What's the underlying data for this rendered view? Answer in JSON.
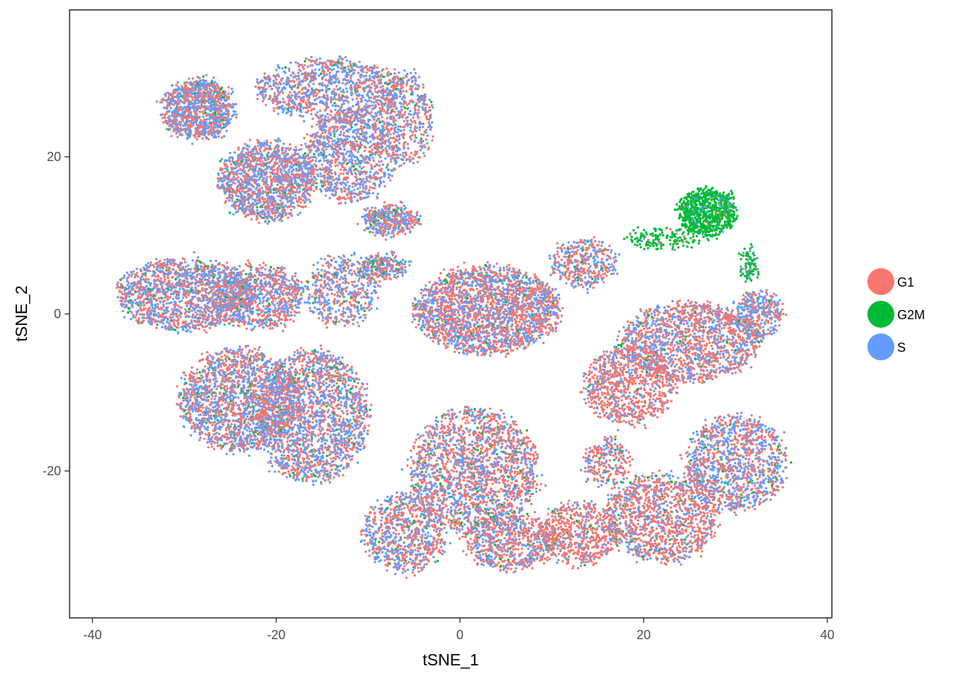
{
  "chart_data": {
    "type": "scatter",
    "title": "",
    "xlabel": "tSNE_1",
    "ylabel": "tSNE_2",
    "xlim": [
      -42.5,
      40.5
    ],
    "ylim": [
      -38.7,
      38.7
    ],
    "x_ticks": [
      -40,
      -20,
      0,
      20,
      40
    ],
    "y_ticks": [
      -20,
      0,
      20
    ],
    "x_tick_labels": [
      "-40",
      "-20",
      "0",
      "20",
      "40"
    ],
    "y_tick_labels": [
      "-20",
      "0",
      "20"
    ],
    "grid": false,
    "legend_position": "right",
    "series": [
      {
        "name": "G1",
        "color": "#F8766D"
      },
      {
        "name": "G2M",
        "color": "#00BA38"
      },
      {
        "name": "S",
        "color": "#619CFF"
      }
    ],
    "clusters": [
      {
        "cx": -28.5,
        "cy": 26.0,
        "rx": 3.8,
        "ry": 3.8,
        "n": 1100,
        "mix": [
          0.46,
          0.04,
          0.5
        ]
      },
      {
        "cx": -21.0,
        "cy": 17.0,
        "rx": 5.0,
        "ry": 5.0,
        "n": 1400,
        "mix": [
          0.45,
          0.03,
          0.52
        ]
      },
      {
        "cx": -14.0,
        "cy": 28.5,
        "rx": 8.0,
        "ry": 4.0,
        "n": 1100,
        "mix": [
          0.45,
          0.03,
          0.52
        ]
      },
      {
        "cx": -12.0,
        "cy": 20.0,
        "rx": 5.0,
        "ry": 5.5,
        "n": 1000,
        "mix": [
          0.45,
          0.03,
          0.52
        ]
      },
      {
        "cx": -6.0,
        "cy": 25.0,
        "rx": 3.0,
        "ry": 6.0,
        "n": 450,
        "mix": [
          0.5,
          0.04,
          0.46
        ]
      },
      {
        "cx": -7.5,
        "cy": 12.0,
        "rx": 3.0,
        "ry": 1.8,
        "n": 400,
        "mix": [
          0.48,
          0.06,
          0.46
        ]
      },
      {
        "cx": -30.0,
        "cy": 2.5,
        "rx": 7.5,
        "ry": 4.5,
        "n": 1500,
        "mix": [
          0.48,
          0.04,
          0.48
        ]
      },
      {
        "cx": -22.0,
        "cy": 2.0,
        "rx": 5.0,
        "ry": 4.0,
        "n": 900,
        "mix": [
          0.48,
          0.04,
          0.48
        ]
      },
      {
        "cx": -24.0,
        "cy": -11.0,
        "rx": 6.5,
        "ry": 6.5,
        "n": 1900,
        "mix": [
          0.47,
          0.04,
          0.49
        ]
      },
      {
        "cx": -16.0,
        "cy": -13.0,
        "rx": 6.0,
        "ry": 8.5,
        "n": 1900,
        "mix": [
          0.47,
          0.04,
          0.49
        ]
      },
      {
        "cx": -13.0,
        "cy": 3.0,
        "rx": 4.0,
        "ry": 4.5,
        "n": 500,
        "mix": [
          0.45,
          0.05,
          0.5
        ]
      },
      {
        "cx": -8.5,
        "cy": 6.0,
        "rx": 2.5,
        "ry": 1.5,
        "n": 250,
        "mix": [
          0.45,
          0.08,
          0.47
        ]
      },
      {
        "cx": 3.0,
        "cy": 0.5,
        "rx": 8.0,
        "ry": 5.5,
        "n": 2300,
        "mix": [
          0.55,
          0.02,
          0.43
        ]
      },
      {
        "cx": 13.5,
        "cy": 6.5,
        "rx": 3.5,
        "ry": 3.0,
        "n": 400,
        "mix": [
          0.5,
          0.04,
          0.46
        ]
      },
      {
        "cx": 25.0,
        "cy": -3.5,
        "rx": 7.5,
        "ry": 5.0,
        "n": 1500,
        "mix": [
          0.6,
          0.02,
          0.38
        ]
      },
      {
        "cx": 32.5,
        "cy": 0.0,
        "rx": 2.5,
        "ry": 3.0,
        "n": 350,
        "mix": [
          0.45,
          0.03,
          0.52
        ]
      },
      {
        "cx": 18.5,
        "cy": -9.0,
        "rx": 5.0,
        "ry": 5.0,
        "n": 900,
        "mix": [
          0.7,
          0.02,
          0.28
        ]
      },
      {
        "cx": 1.5,
        "cy": -20.0,
        "rx": 7.0,
        "ry": 8.0,
        "n": 1900,
        "mix": [
          0.55,
          0.05,
          0.4
        ]
      },
      {
        "cx": -6.0,
        "cy": -28.0,
        "rx": 4.5,
        "ry": 5.0,
        "n": 800,
        "mix": [
          0.52,
          0.03,
          0.45
        ]
      },
      {
        "cx": 5.5,
        "cy": -29.0,
        "rx": 5.0,
        "ry": 3.5,
        "n": 700,
        "mix": [
          0.6,
          0.03,
          0.37
        ]
      },
      {
        "cx": 13.0,
        "cy": -28.0,
        "rx": 4.0,
        "ry": 4.0,
        "n": 600,
        "mix": [
          0.75,
          0.03,
          0.22
        ]
      },
      {
        "cx": 22.0,
        "cy": -26.0,
        "rx": 6.0,
        "ry": 5.5,
        "n": 1200,
        "mix": [
          0.68,
          0.03,
          0.29
        ]
      },
      {
        "cx": 30.0,
        "cy": -19.0,
        "rx": 5.5,
        "ry": 6.0,
        "n": 1200,
        "mix": [
          0.48,
          0.03,
          0.49
        ]
      },
      {
        "cx": 16.0,
        "cy": -19.0,
        "rx": 2.5,
        "ry": 3.0,
        "n": 250,
        "mix": [
          0.6,
          0.06,
          0.34
        ]
      },
      {
        "cx": 27.0,
        "cy": 13.0,
        "rx": 3.0,
        "ry": 3.0,
        "n": 800,
        "mix": [
          0.02,
          0.93,
          0.05
        ]
      },
      {
        "cx": 22.0,
        "cy": 9.5,
        "rx": 4.0,
        "ry": 1.2,
        "n": 150,
        "mix": [
          0.05,
          0.88,
          0.07
        ]
      },
      {
        "cx": 31.5,
        "cy": 6.5,
        "rx": 0.8,
        "ry": 2.0,
        "n": 90,
        "mix": [
          0.05,
          0.75,
          0.2
        ]
      }
    ]
  }
}
